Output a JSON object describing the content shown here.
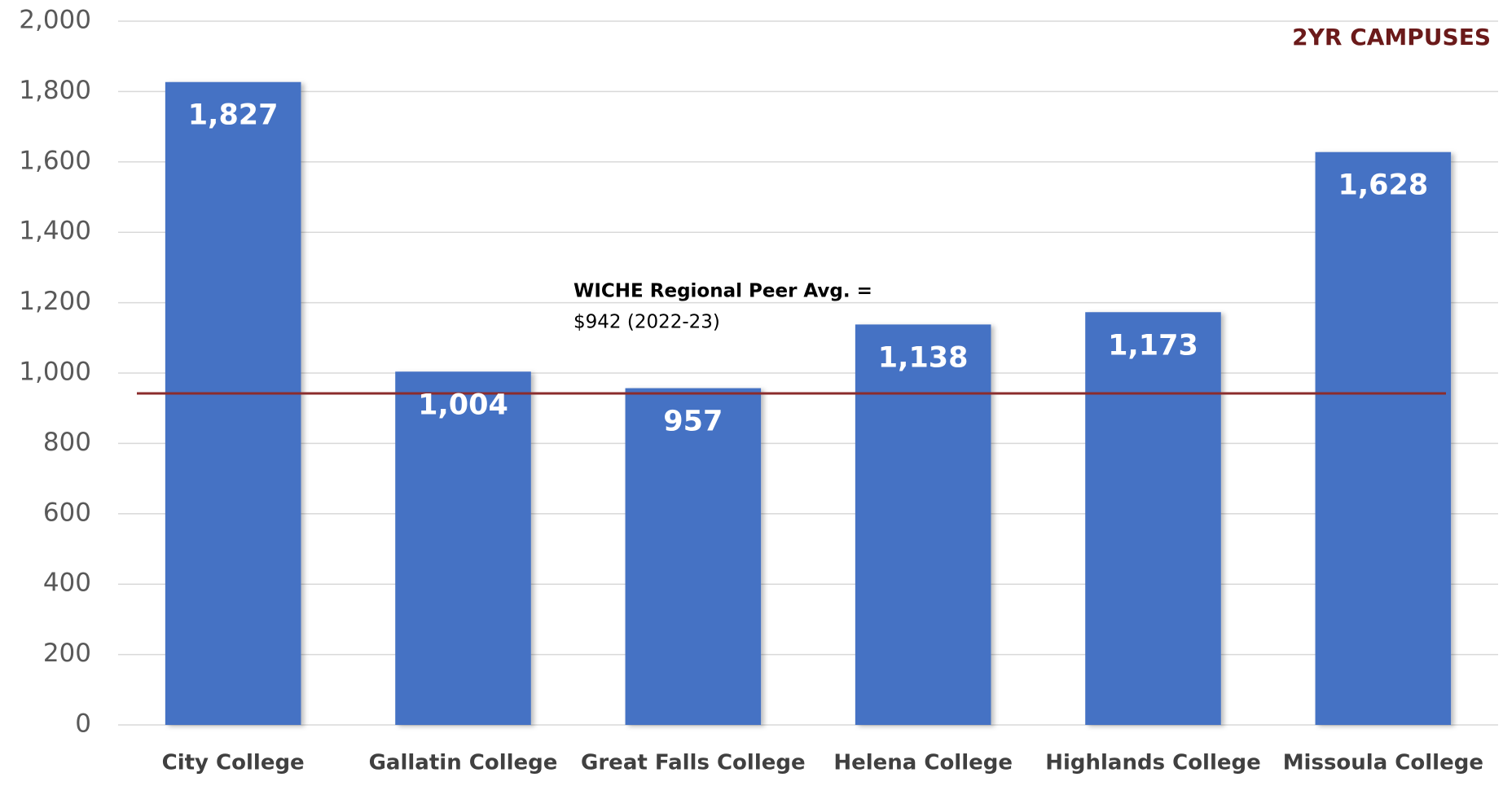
{
  "chart_data": {
    "type": "bar",
    "subtitle": "2YR CAMPUSES",
    "categories": [
      "City College",
      "Gallatin College",
      "Great Falls College",
      "Helena College",
      "Highlands College",
      "Missoula College"
    ],
    "values": [
      1827,
      1004,
      957,
      1138,
      1173,
      1628
    ],
    "value_labels": [
      "1,827",
      "1,004",
      "957",
      "1,138",
      "1,173",
      "1,628"
    ],
    "color": "#4472c4",
    "ylim": [
      0,
      2000
    ],
    "yticks": [
      0,
      200,
      400,
      600,
      800,
      {
        "value": 1000,
        "label": "1,000"
      },
      {
        "value": 1200,
        "label": "1,200"
      },
      {
        "value": 1400,
        "label": "1,400"
      },
      {
        "value": 1600,
        "label": "1,600"
      },
      {
        "value": 1800,
        "label": "1,800"
      },
      {
        "value": 2000,
        "label": "2,000"
      }
    ],
    "grid": true,
    "reference_line": {
      "value": 942,
      "color": "#8b2c2c",
      "annotation": [
        "WICHE Regional Peer Avg. =",
        "$942 (2022-23)"
      ]
    }
  }
}
